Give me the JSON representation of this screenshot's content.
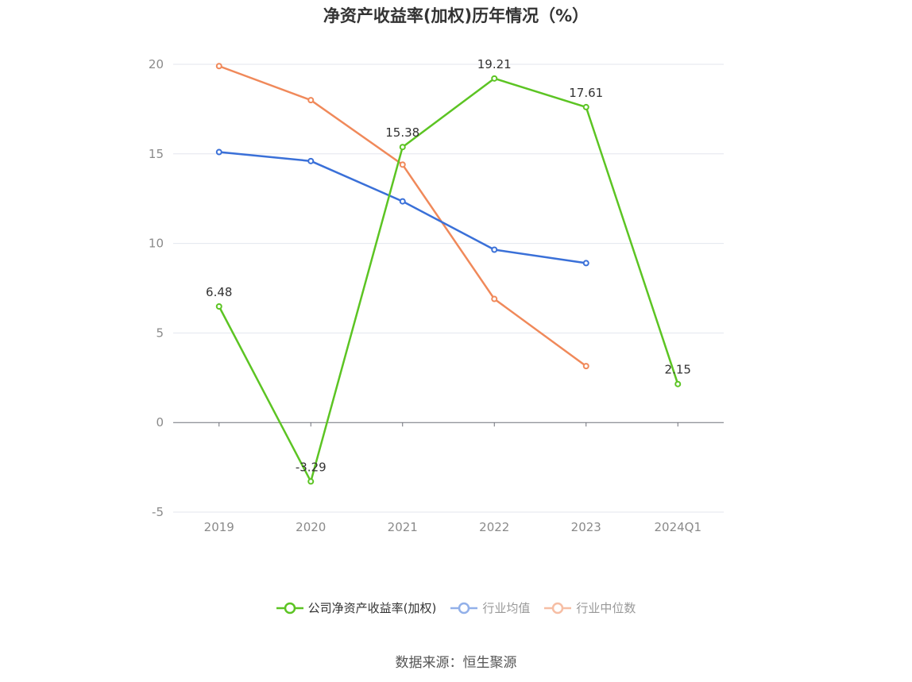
{
  "title": "净资产收益率(加权)历年情况（%）",
  "source": "数据来源：恒生聚源",
  "chart_data": {
    "type": "line",
    "categories": [
      "2019",
      "2020",
      "2021",
      "2022",
      "2023",
      "2024Q1"
    ],
    "ylim": [
      -5,
      20
    ],
    "yticks": [
      20,
      15,
      10,
      5,
      0,
      -5
    ],
    "grid": true,
    "legend_position": "bottom",
    "series": [
      {
        "name": "公司净资产收益率(加权)",
        "color": "#5cc423",
        "values": [
          6.48,
          -3.29,
          15.38,
          19.21,
          17.61,
          2.15
        ],
        "labels": [
          "6.48",
          "-3.29",
          "15.38",
          "19.21",
          "17.61",
          "2.15"
        ]
      },
      {
        "name": "行业均值",
        "color": "#3a70d8",
        "values": [
          15.1,
          14.6,
          12.35,
          9.65,
          8.9,
          null
        ]
      },
      {
        "name": "行业中位数",
        "color": "#f0895a",
        "values": [
          19.9,
          18.0,
          14.4,
          6.9,
          3.15,
          null
        ]
      }
    ]
  }
}
